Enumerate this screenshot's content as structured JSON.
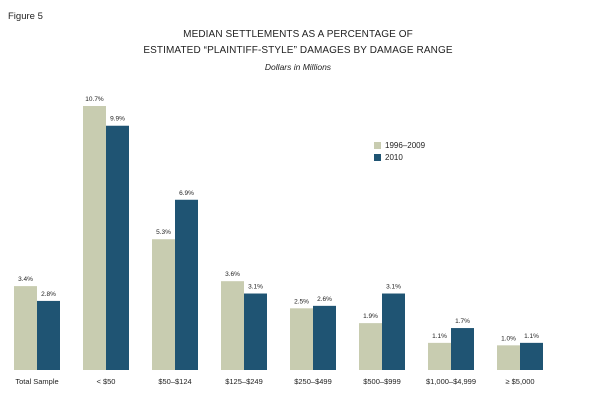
{
  "figure_label": "Figure 5",
  "title_line1": "MEDIAN SETTLEMENTS AS A PERCENTAGE OF",
  "title_line2": "ESTIMATED “PLAINTIFF-STYLE” DAMAGES BY DAMAGE RANGE",
  "subtitle": "Dollars in Millions",
  "colors": {
    "series1": "#c8ccb0",
    "series2": "#1f5473"
  },
  "chart_data": {
    "type": "bar",
    "title": "MEDIAN SETTLEMENTS AS A PERCENTAGE OF ESTIMATED “PLAINTIFF-STYLE” DAMAGES BY DAMAGE RANGE",
    "subtitle": "Dollars in Millions",
    "categories": [
      "Total Sample",
      "< $50",
      "$50–$124",
      "$125–$249",
      "$250–$499",
      "$500–$999",
      "$1,000–$4,999",
      "≥ $5,000"
    ],
    "series": [
      {
        "name": "1996–2009",
        "values": [
          3.4,
          10.7,
          5.3,
          3.6,
          2.5,
          1.9,
          1.1,
          1.0
        ],
        "labels": [
          "3.4%",
          "10.7%",
          "5.3%",
          "3.6%",
          "2.5%",
          "1.9%",
          "1.1%",
          "1.0%"
        ]
      },
      {
        "name": "2010",
        "values": [
          2.8,
          9.9,
          6.9,
          3.1,
          2.6,
          3.1,
          1.7,
          1.1
        ],
        "labels": [
          "2.8%",
          "9.9%",
          "6.9%",
          "3.1%",
          "2.6%",
          "3.1%",
          "1.7%",
          "1.1%"
        ]
      }
    ],
    "ylim": [
      0,
      10.7
    ],
    "legend_position": "top-right",
    "grid": false
  }
}
